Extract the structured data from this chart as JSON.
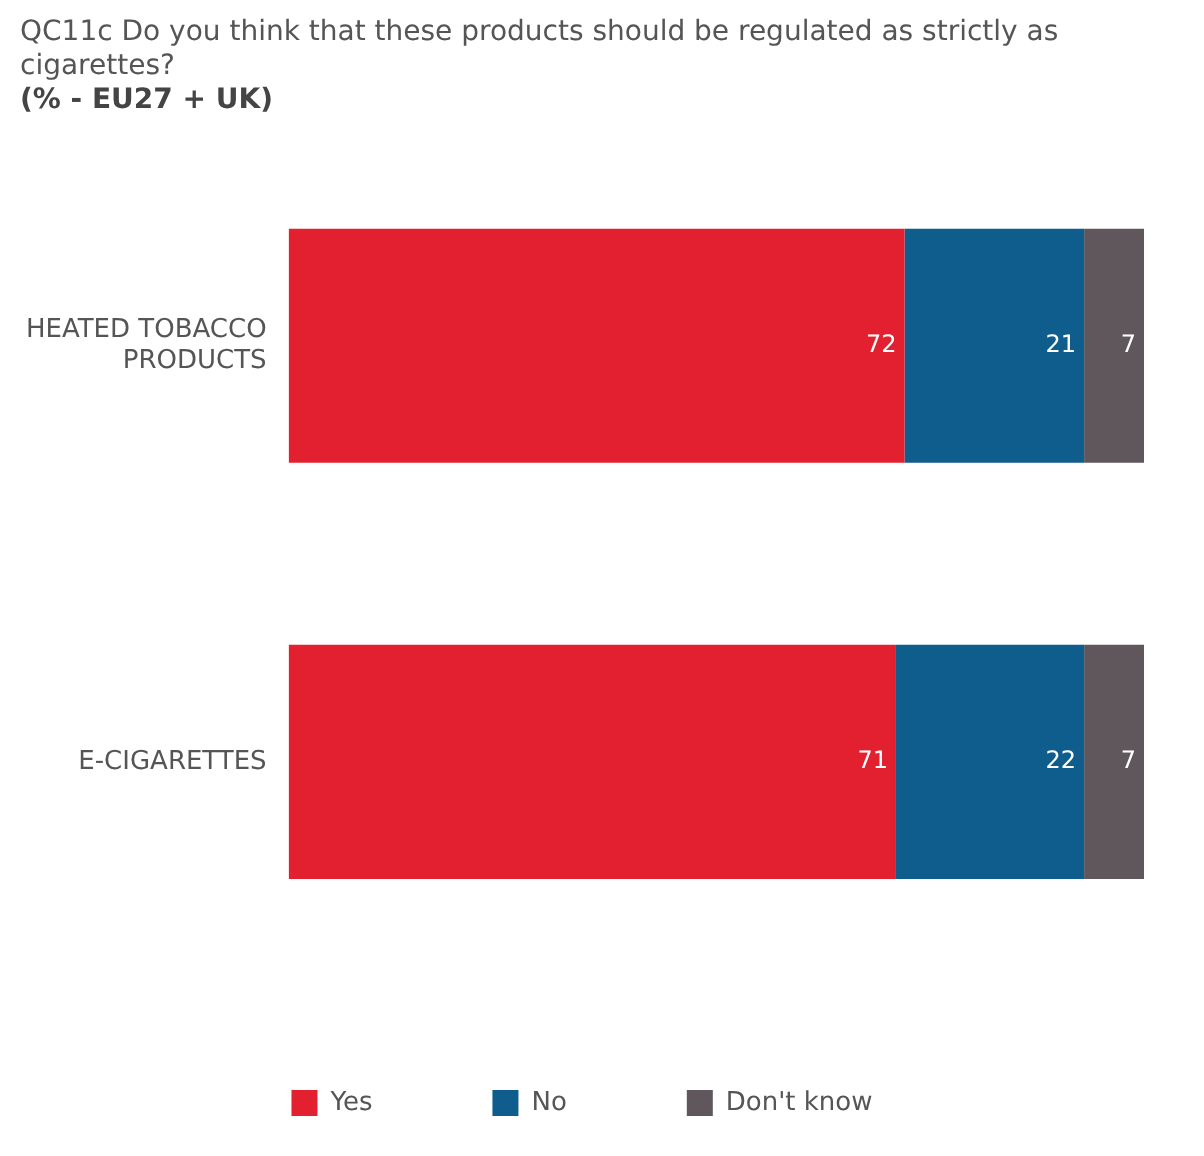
{
  "chart_data": {
    "type": "bar",
    "orientation": "horizontal",
    "stacked": true,
    "title": "QC11c Do you think that these products should be regulated as strictly as cigarettes?",
    "subtitle": "(% - EU27 + UK)",
    "categories": [
      "HEATED TOBACCO PRODUCTS",
      "E-CIGARETTES"
    ],
    "series": [
      {
        "name": "Yes",
        "color": "#e3202f",
        "values": [
          72,
          71
        ]
      },
      {
        "name": "No",
        "color": "#0e5d8d",
        "values": [
          21,
          22
        ]
      },
      {
        "name": "Don't know",
        "color": "#5f575b",
        "values": [
          7,
          7
        ]
      }
    ],
    "data_labels": true,
    "legend": "bottom",
    "grid": false,
    "tick_labels": "y"
  }
}
